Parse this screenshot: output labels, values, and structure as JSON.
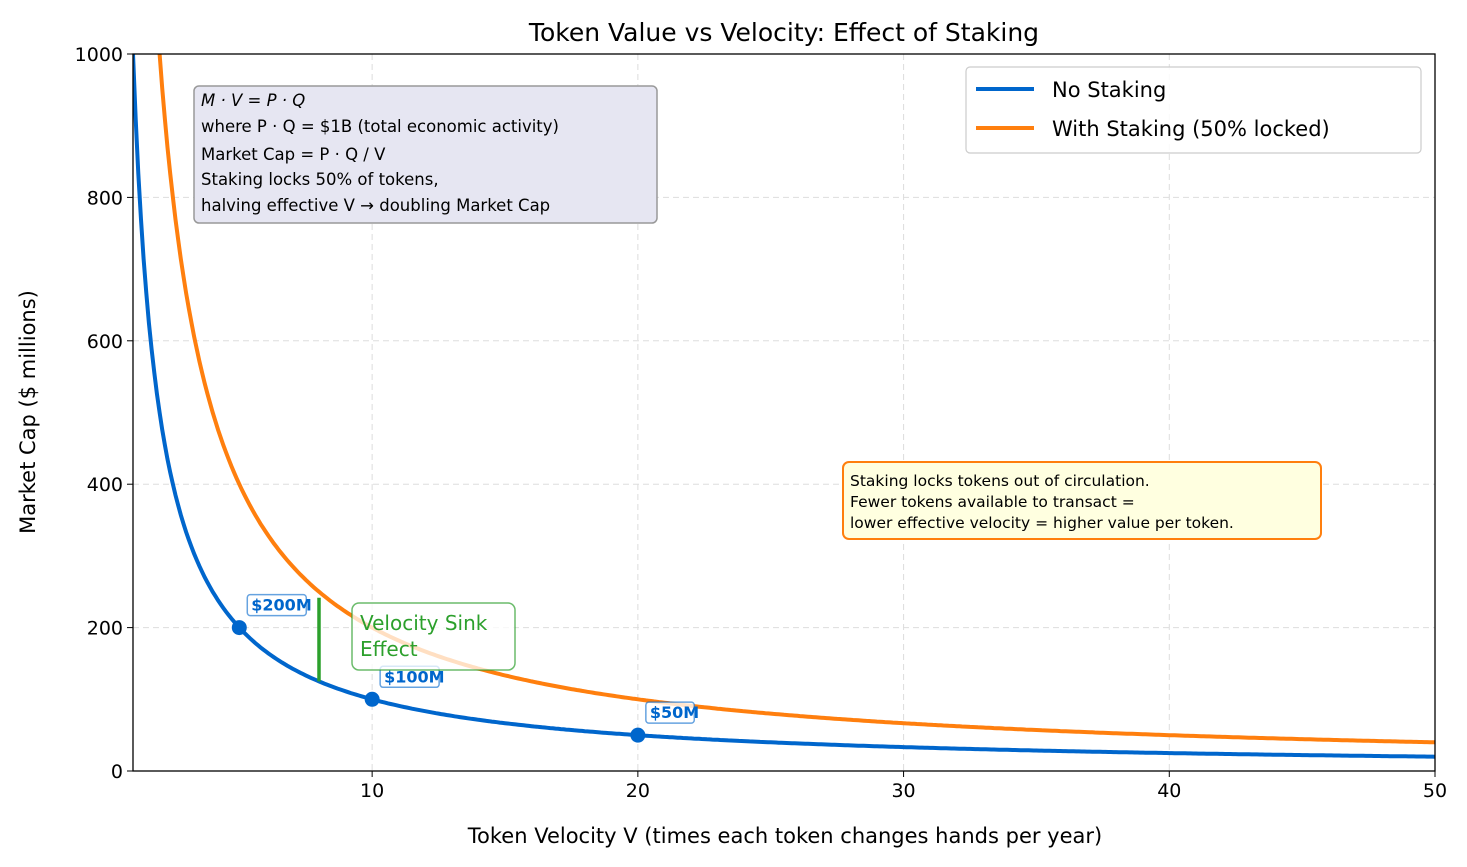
{
  "chart_data": {
    "type": "line",
    "title": "Token Value vs Velocity: Effect of Staking",
    "xlabel": "Token Velocity V (times each token changes hands per year)",
    "ylabel": "Market Cap ($ millions)",
    "xlim": [
      1,
      50
    ],
    "ylim": [
      0,
      1000
    ],
    "xticks": [
      10,
      20,
      30,
      40,
      50
    ],
    "yticks": [
      0,
      200,
      400,
      600,
      800,
      1000
    ],
    "grid": true,
    "legend_position": "top-right",
    "series": [
      {
        "name": "No Staking",
        "formula": "1000 / V",
        "color": "#0066cc"
      },
      {
        "name": "With Staking (50% locked)",
        "formula": "2000 / V",
        "color": "#ff7f0e"
      }
    ],
    "highlight_points": [
      {
        "x": 5,
        "y": 200,
        "label": "$200M"
      },
      {
        "x": 10,
        "y": 100,
        "label": "$100M"
      },
      {
        "x": 20,
        "y": 50,
        "label": "$50M"
      }
    ],
    "velocity_sink": {
      "x": 8,
      "y_from": 125,
      "y_to": 250,
      "label_lines": [
        "Velocity Sink",
        "Effect"
      ],
      "color": "#2ca02c"
    },
    "info_box_lines": [
      "M · V = P · Q",
      "where P · Q = $1B (total economic activity)",
      "Market Cap  = P · Q / V",
      "Staking locks 50% of tokens,",
      "halving effective V → doubling Market Cap"
    ],
    "note_box_lines": [
      "Staking locks tokens out of circulation.",
      "Fewer tokens available to transact =",
      "lower effective velocity = higher value per token."
    ]
  }
}
